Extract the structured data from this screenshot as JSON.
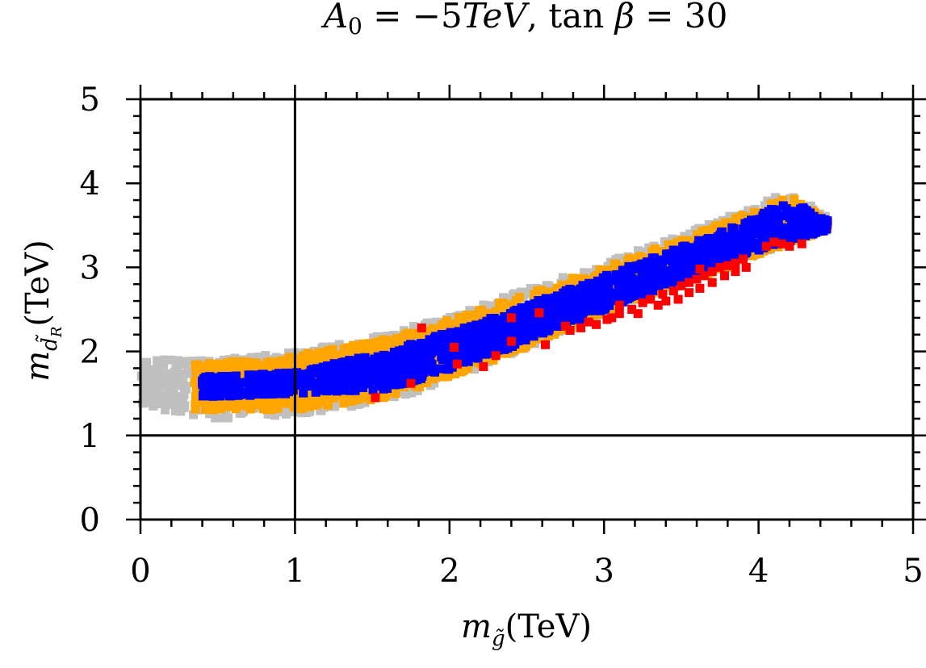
{
  "chart_data": {
    "type": "scatter",
    "title": {
      "lhs_symbol": "A",
      "lhs_sub": "0",
      "equals1": " = −5",
      "unit": "TeV",
      "comma": ", tan ",
      "beta": "β",
      "equals2": " = 30"
    },
    "xlabel": {
      "symbol": "m",
      "sub": "g̃",
      "unit": "(TeV)"
    },
    "ylabel": {
      "symbol": "m",
      "sub_main": "d̃",
      "sub_sub": "R",
      "unit": "(TeV)"
    },
    "xlim": [
      0,
      5
    ],
    "ylim": [
      0,
      5
    ],
    "xticks": [
      "0",
      "1",
      "2",
      "3",
      "4",
      "5"
    ],
    "yticks": [
      "0",
      "1",
      "2",
      "3",
      "4",
      "5"
    ],
    "reference_lines": {
      "vertical_x": 1,
      "horizontal_y": 1
    },
    "colors": {
      "gray": "#c0c0c0",
      "orange": "#ffa500",
      "blue": "#0000ff",
      "red": "#ff0000",
      "axes": "#000000"
    },
    "regions": [
      {
        "name": "gray",
        "color": "#c0c0c0",
        "x_range": [
          0.0,
          4.45
        ],
        "lower_edge": [
          [
            0.0,
            1.35
          ],
          [
            0.5,
            1.2
          ],
          [
            1.0,
            1.25
          ],
          [
            1.6,
            1.4
          ],
          [
            2.2,
            1.8
          ],
          [
            3.0,
            2.45
          ],
          [
            4.0,
            3.15
          ],
          [
            4.45,
            3.45
          ]
        ],
        "upper_edge": [
          [
            0.0,
            1.9
          ],
          [
            0.5,
            1.9
          ],
          [
            1.0,
            2.0
          ],
          [
            1.6,
            2.2
          ],
          [
            2.2,
            2.55
          ],
          [
            3.0,
            3.05
          ],
          [
            3.8,
            3.6
          ],
          [
            4.2,
            3.9
          ],
          [
            4.45,
            3.6
          ]
        ],
        "count": 1400
      },
      {
        "name": "orange",
        "color": "#ffa500",
        "x_range": [
          0.35,
          4.45
        ],
        "lower_edge": [
          [
            0.35,
            1.3
          ],
          [
            1.0,
            1.3
          ],
          [
            1.6,
            1.45
          ],
          [
            2.2,
            1.82
          ],
          [
            3.0,
            2.45
          ],
          [
            4.0,
            3.15
          ],
          [
            4.45,
            3.45
          ]
        ],
        "upper_edge": [
          [
            0.35,
            1.85
          ],
          [
            1.0,
            1.95
          ],
          [
            1.6,
            2.15
          ],
          [
            2.2,
            2.5
          ],
          [
            3.0,
            3.0
          ],
          [
            3.8,
            3.55
          ],
          [
            4.2,
            3.85
          ],
          [
            4.45,
            3.55
          ]
        ],
        "count": 1800
      },
      {
        "name": "blue",
        "color": "#0000ff",
        "x_range": [
          0.4,
          4.45
        ],
        "lower_edge": [
          [
            0.4,
            1.45
          ],
          [
            1.0,
            1.5
          ],
          [
            1.6,
            1.55
          ],
          [
            2.2,
            1.9
          ],
          [
            3.0,
            2.5
          ],
          [
            4.0,
            3.2
          ],
          [
            4.45,
            3.45
          ]
        ],
        "upper_edge": [
          [
            0.4,
            1.7
          ],
          [
            1.0,
            1.75
          ],
          [
            1.6,
            2.0
          ],
          [
            2.2,
            2.35
          ],
          [
            3.0,
            2.9
          ],
          [
            3.8,
            3.45
          ],
          [
            4.2,
            3.8
          ],
          [
            4.45,
            3.55
          ]
        ],
        "count": 1600
      }
    ],
    "red_points": [
      [
        1.52,
        1.45
      ],
      [
        1.75,
        1.62
      ],
      [
        1.82,
        2.28
      ],
      [
        2.03,
        2.05
      ],
      [
        2.05,
        1.85
      ],
      [
        2.22,
        1.82
      ],
      [
        2.3,
        1.95
      ],
      [
        2.4,
        2.12
      ],
      [
        2.58,
        2.46
      ],
      [
        2.62,
        2.08
      ],
      [
        2.4,
        2.4
      ],
      [
        2.75,
        2.3
      ],
      [
        2.85,
        2.28
      ],
      [
        2.95,
        2.32
      ],
      [
        3.02,
        2.38
      ],
      [
        3.1,
        2.45
      ],
      [
        3.18,
        2.5
      ],
      [
        3.25,
        2.58
      ],
      [
        3.3,
        2.62
      ],
      [
        3.38,
        2.68
      ],
      [
        3.45,
        2.72
      ],
      [
        3.5,
        2.78
      ],
      [
        3.55,
        2.82
      ],
      [
        3.6,
        2.86
      ],
      [
        3.65,
        2.9
      ],
      [
        3.7,
        2.95
      ],
      [
        3.75,
        3.0
      ],
      [
        3.8,
        3.02
      ],
      [
        3.85,
        3.05
      ],
      [
        3.9,
        3.1
      ],
      [
        3.55,
        2.7
      ],
      [
        3.62,
        2.75
      ],
      [
        3.7,
        2.82
      ],
      [
        3.78,
        2.9
      ],
      [
        3.85,
        2.95
      ],
      [
        3.92,
        3.0
      ],
      [
        3.1,
        2.55
      ],
      [
        3.05,
        2.4
      ],
      [
        3.22,
        2.45
      ],
      [
        3.35,
        2.55
      ],
      [
        4.05,
        3.25
      ],
      [
        4.1,
        3.3
      ],
      [
        4.15,
        3.28
      ],
      [
        4.2,
        3.25
      ],
      [
        4.28,
        3.28
      ],
      [
        3.48,
        2.62
      ],
      [
        3.4,
        2.6
      ],
      [
        2.9,
        2.35
      ],
      [
        2.78,
        2.25
      ],
      [
        3.62,
        2.98
      ]
    ]
  }
}
